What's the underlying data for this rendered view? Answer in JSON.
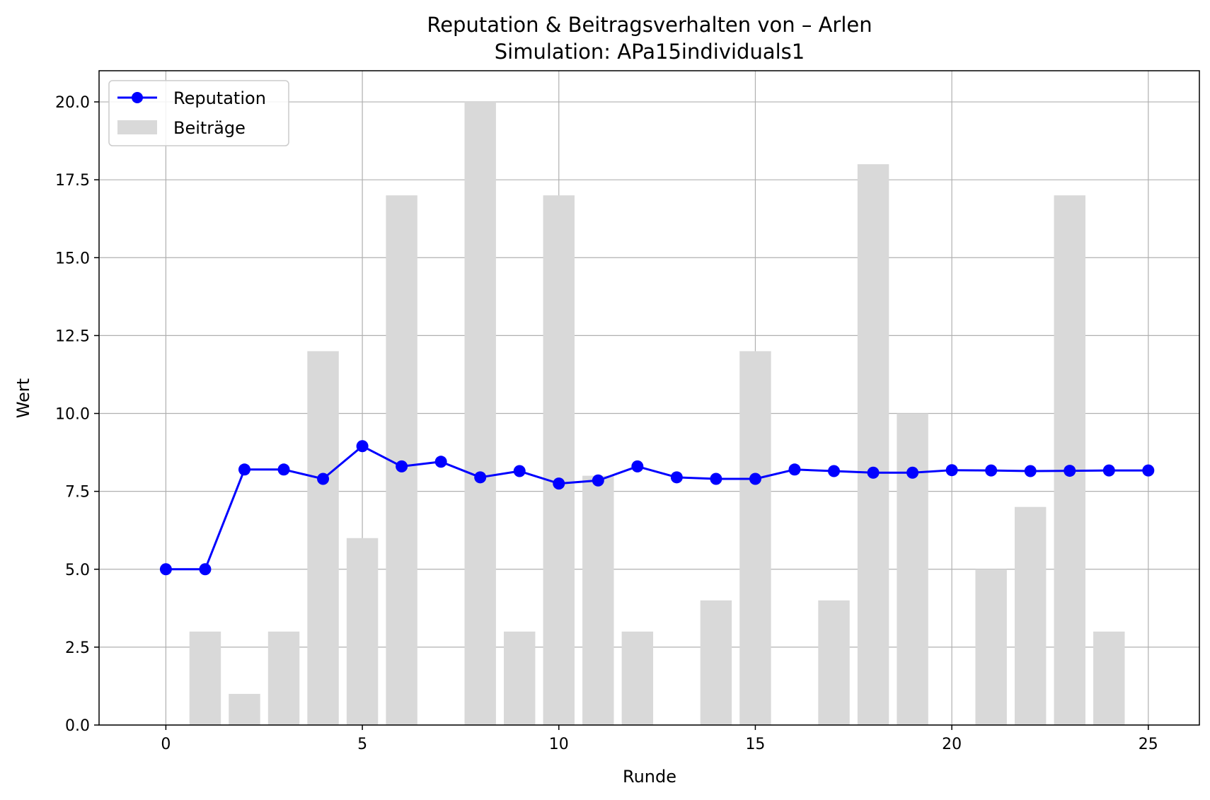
{
  "chart_data": {
    "type": "bar+line",
    "title": "Reputation & Beitragsverhalten von – Arlen",
    "subtitle": "Simulation: APa15individuals1",
    "xlabel": "Runde",
    "ylabel": "Wert",
    "xlim": [
      -1.7,
      26.3
    ],
    "ylim": [
      0,
      21
    ],
    "xticks": [
      0,
      5,
      10,
      15,
      20,
      25
    ],
    "yticks": [
      0.0,
      2.5,
      5.0,
      7.5,
      10.0,
      12.5,
      15.0,
      17.5,
      20.0
    ],
    "xtick_labels": [
      "0",
      "5",
      "10",
      "15",
      "20",
      "25"
    ],
    "ytick_labels": [
      "0.0",
      "2.5",
      "5.0",
      "7.5",
      "10.0",
      "12.5",
      "15.0",
      "17.5",
      "20.0"
    ],
    "grid": true,
    "legend_position": "top-left",
    "series": [
      {
        "name": "Reputation",
        "kind": "line",
        "marker": "circle",
        "color": "#0000ff",
        "x": [
          0,
          1,
          2,
          3,
          4,
          5,
          6,
          7,
          8,
          9,
          10,
          11,
          12,
          13,
          14,
          15,
          16,
          17,
          18,
          19,
          20,
          21,
          22,
          23,
          24,
          25
        ],
        "values": [
          5.0,
          5.0,
          8.2,
          8.2,
          7.9,
          8.95,
          8.3,
          8.45,
          7.95,
          8.15,
          7.75,
          7.85,
          8.3,
          7.95,
          7.9,
          7.9,
          8.2,
          8.15,
          8.1,
          8.1,
          8.18,
          8.17,
          8.15,
          8.16,
          8.17,
          8.17
        ]
      },
      {
        "name": "Beiträge",
        "kind": "bar",
        "color": "#d9d9d9",
        "x": [
          1,
          2,
          3,
          4,
          5,
          6,
          8,
          9,
          10,
          11,
          12,
          14,
          15,
          17,
          18,
          19,
          21,
          22,
          23,
          24
        ],
        "values": [
          3,
          1,
          3,
          12,
          6,
          17,
          20,
          3,
          17,
          8,
          3,
          4,
          12,
          4,
          18,
          10,
          5,
          7,
          17,
          3
        ]
      }
    ]
  }
}
